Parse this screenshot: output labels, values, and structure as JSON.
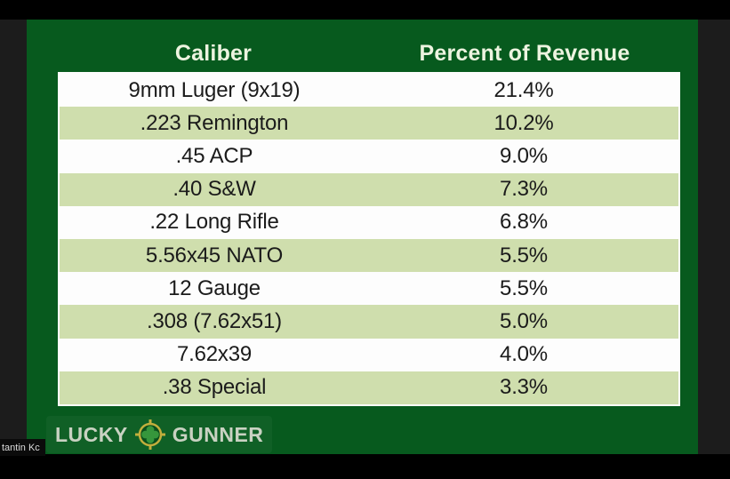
{
  "window": {
    "participant_label": "tantin Kc"
  },
  "slide": {
    "logo": {
      "word1": "LUCKY",
      "word2": "GUNNER",
      "icon": "clover-crosshair-icon"
    }
  },
  "chart_data": {
    "type": "table",
    "title": "",
    "columns": [
      "Caliber",
      "Percent of Revenue"
    ],
    "rows": [
      [
        "9mm Luger (9x19)",
        "21.4%"
      ],
      [
        ".223 Remington",
        "10.2%"
      ],
      [
        ".45 ACP",
        "9.0%"
      ],
      [
        ".40 S&W",
        "7.3%"
      ],
      [
        ".22 Long Rifle",
        "6.8%"
      ],
      [
        "5.56x45 NATO",
        "5.5%"
      ],
      [
        "12 Gauge",
        "5.5%"
      ],
      [
        ".308 (7.62x51)",
        "5.0%"
      ],
      [
        "7.62x39",
        "4.0%"
      ],
      [
        ".38 Special",
        "3.3%"
      ]
    ],
    "layout": {
      "row_striping": "white / light-green alternating",
      "alignment": "center"
    }
  },
  "colors": {
    "slide_green": "#075a1e",
    "row_alt_green": "#cfdead",
    "header_text": "#edf4e0",
    "table_text": "#1b1b1b",
    "logo_text": "#c9d2c2",
    "gold_ring": "#c2ae3c",
    "clover_green": "#36963c",
    "gutter_gray": "#1c1c1c",
    "letterbox_black": "#000000"
  }
}
